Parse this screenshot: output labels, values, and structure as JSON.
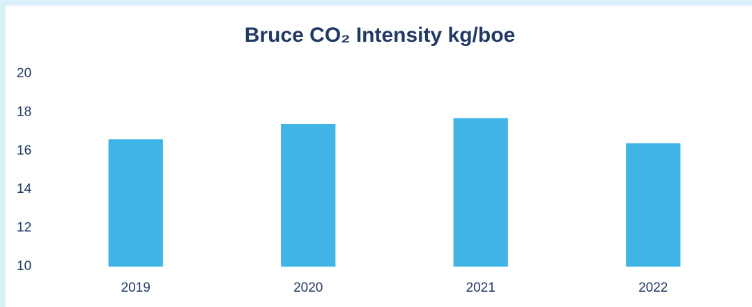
{
  "chart_data": {
    "type": "bar",
    "title": "Bruce CO₂ Intensity kg/boe",
    "categories": [
      "2019",
      "2020",
      "2021",
      "2022"
    ],
    "values": [
      16.6,
      17.4,
      17.7,
      16.4
    ],
    "color": "#41b4e6",
    "ylim": [
      10,
      20
    ],
    "yticks": [
      10,
      12,
      14,
      16,
      18,
      20
    ],
    "grid": false
  }
}
